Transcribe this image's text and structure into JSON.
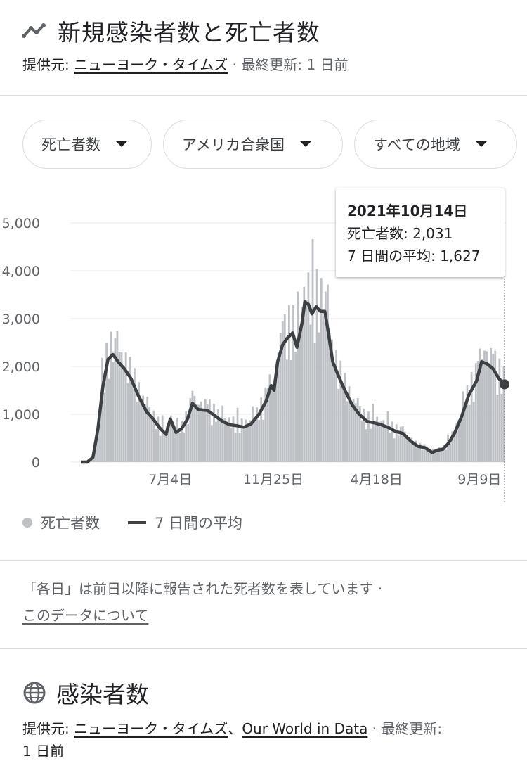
{
  "header": {
    "title": "新規感染者数と死亡者数",
    "source_prefix": "提供元: ",
    "source_link": "ニューヨーク・タイムズ",
    "updated": " · 最終更新: 1 日前"
  },
  "filters": {
    "metric": "死亡者数",
    "country": "アメリカ合衆国",
    "region": "すべての地域"
  },
  "tooltip": {
    "date": "2021年10月14日",
    "deaths_label": "死亡者数: 2,031",
    "avg_label": "7 日間の平均: 1,627"
  },
  "legend": {
    "deaths": "死亡者数",
    "avg": "7 日間の平均"
  },
  "note": {
    "text": "「各日」は前日以降に報告された死者数を表しています  ·",
    "link": "このデータについて"
  },
  "section2": {
    "title": "感染者数",
    "source_prefix": "提供元: ",
    "source_link1": "ニューヨーク・タイムズ",
    "sep": "、",
    "source_link2": "Our World in Data",
    "updated": " · 最終更新:",
    "updated2": "1 日前"
  },
  "colors": {
    "bar": "#bdc1c6",
    "avg_line": "#3c4043",
    "grid": "#e8eaed"
  },
  "chart_data": {
    "type": "bar",
    "ylim": [
      0,
      5000
    ],
    "yticks": [
      0,
      1000,
      2000,
      3000,
      4000,
      5000
    ],
    "ytick_labels": [
      "0",
      "1,000",
      "2,000",
      "3,000",
      "4,000",
      "5,000"
    ],
    "x_start": "2020-03-01",
    "x_end": "2021-10-14",
    "xticks": [
      {
        "date": "2020-07-04",
        "label": "7月4日"
      },
      {
        "date": "2020-11-25",
        "label": "11月25日"
      },
      {
        "date": "2021-04-18",
        "label": "4月18日"
      },
      {
        "date": "2021-09-09",
        "label": "9月9日"
      }
    ],
    "bar_interval_days": 3,
    "avg_series": {
      "name": "7 日間の平均",
      "points": [
        [
          "2020-03-01",
          0
        ],
        [
          "2020-03-10",
          0
        ],
        [
          "2020-03-18",
          100
        ],
        [
          "2020-03-25",
          700
        ],
        [
          "2020-04-01",
          1600
        ],
        [
          "2020-04-08",
          2150
        ],
        [
          "2020-04-15",
          2250
        ],
        [
          "2020-04-22",
          2100
        ],
        [
          "2020-05-01",
          1950
        ],
        [
          "2020-05-10",
          1750
        ],
        [
          "2020-05-20",
          1400
        ],
        [
          "2020-06-01",
          1050
        ],
        [
          "2020-06-10",
          900
        ],
        [
          "2020-06-20",
          700
        ],
        [
          "2020-06-28",
          580
        ],
        [
          "2020-07-04",
          900
        ],
        [
          "2020-07-12",
          620
        ],
        [
          "2020-07-20",
          700
        ],
        [
          "2020-07-28",
          900
        ],
        [
          "2020-08-04",
          1230
        ],
        [
          "2020-08-12",
          1100
        ],
        [
          "2020-08-25",
          1080
        ],
        [
          "2020-09-05",
          960
        ],
        [
          "2020-09-15",
          850
        ],
        [
          "2020-09-25",
          780
        ],
        [
          "2020-10-05",
          760
        ],
        [
          "2020-10-15",
          730
        ],
        [
          "2020-10-25",
          800
        ],
        [
          "2020-11-05",
          1000
        ],
        [
          "2020-11-15",
          1280
        ],
        [
          "2020-11-22",
          1600
        ],
        [
          "2020-11-26",
          1500
        ],
        [
          "2020-12-01",
          2100
        ],
        [
          "2020-12-08",
          2450
        ],
        [
          "2020-12-15",
          2600
        ],
        [
          "2020-12-22",
          2700
        ],
        [
          "2020-12-28",
          2400
        ],
        [
          "2021-01-04",
          2900
        ],
        [
          "2021-01-08",
          3350
        ],
        [
          "2021-01-13",
          3300
        ],
        [
          "2021-01-18",
          3100
        ],
        [
          "2021-01-24",
          3250
        ],
        [
          "2021-01-30",
          3150
        ],
        [
          "2021-02-05",
          3150
        ],
        [
          "2021-02-10",
          2700
        ],
        [
          "2021-02-16",
          2100
        ],
        [
          "2021-02-24",
          1800
        ],
        [
          "2021-03-05",
          1500
        ],
        [
          "2021-03-15",
          1200
        ],
        [
          "2021-03-25",
          1000
        ],
        [
          "2021-04-05",
          850
        ],
        [
          "2021-04-15",
          820
        ],
        [
          "2021-04-25",
          780
        ],
        [
          "2021-05-05",
          720
        ],
        [
          "2021-05-15",
          640
        ],
        [
          "2021-05-25",
          600
        ],
        [
          "2021-06-05",
          440
        ],
        [
          "2021-06-15",
          330
        ],
        [
          "2021-06-25",
          300
        ],
        [
          "2021-07-05",
          200
        ],
        [
          "2021-07-12",
          250
        ],
        [
          "2021-07-20",
          270
        ],
        [
          "2021-07-28",
          400
        ],
        [
          "2021-08-05",
          600
        ],
        [
          "2021-08-15",
          950
        ],
        [
          "2021-08-25",
          1400
        ],
        [
          "2021-09-05",
          1700
        ],
        [
          "2021-09-12",
          2100
        ],
        [
          "2021-09-20",
          2050
        ],
        [
          "2021-09-28",
          1950
        ],
        [
          "2021-10-06",
          1750
        ],
        [
          "2021-10-14",
          1627
        ]
      ]
    },
    "selected": {
      "date": "2021-10-14",
      "deaths": 2031,
      "avg": 1627
    }
  }
}
